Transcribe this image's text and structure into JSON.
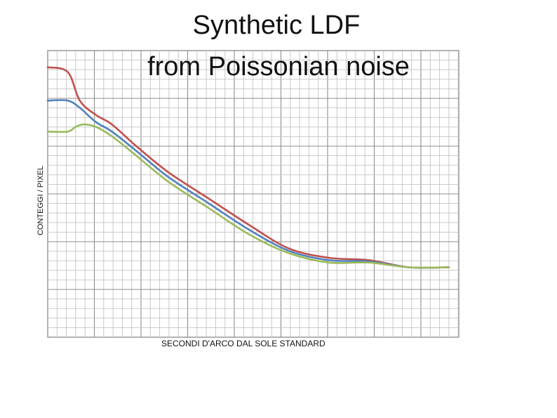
{
  "chart_data": {
    "type": "line",
    "title": "Synthetic LDF",
    "subtitle": "from Poissonian noise",
    "xlabel": "SECONDI D'ARCO DAL SOLE STANDARD",
    "ylabel": "CONTEGGI / PIXEL",
    "xlim": [
      0,
      1
    ],
    "ylim": [
      0,
      1
    ],
    "grid": true,
    "series": [
      {
        "color": "#c0504d",
        "x": [
          0.0,
          0.05,
          0.08,
          0.12,
          0.16,
          0.22,
          0.3,
          0.4,
          0.5,
          0.6,
          0.7,
          0.8,
          0.9,
          1.0
        ],
        "y": [
          0.93,
          0.91,
          0.79,
          0.73,
          0.69,
          0.6,
          0.49,
          0.38,
          0.27,
          0.17,
          0.13,
          0.12,
          0.09,
          0.09
        ]
      },
      {
        "color": "#4f81bd",
        "x": [
          0.0,
          0.05,
          0.08,
          0.12,
          0.16,
          0.22,
          0.3,
          0.4,
          0.5,
          0.6,
          0.7,
          0.8,
          0.9,
          1.0
        ],
        "y": [
          0.79,
          0.79,
          0.76,
          0.7,
          0.66,
          0.58,
          0.47,
          0.36,
          0.25,
          0.16,
          0.12,
          0.115,
          0.09,
          0.09
        ]
      },
      {
        "color": "#9bbb59",
        "x": [
          0.0,
          0.05,
          0.07,
          0.09,
          0.12,
          0.16,
          0.22,
          0.3,
          0.4,
          0.5,
          0.6,
          0.7,
          0.8,
          0.9,
          1.0
        ],
        "y": [
          0.66,
          0.66,
          0.68,
          0.69,
          0.68,
          0.64,
          0.56,
          0.45,
          0.34,
          0.23,
          0.15,
          0.11,
          0.11,
          0.09,
          0.09
        ]
      }
    ]
  }
}
